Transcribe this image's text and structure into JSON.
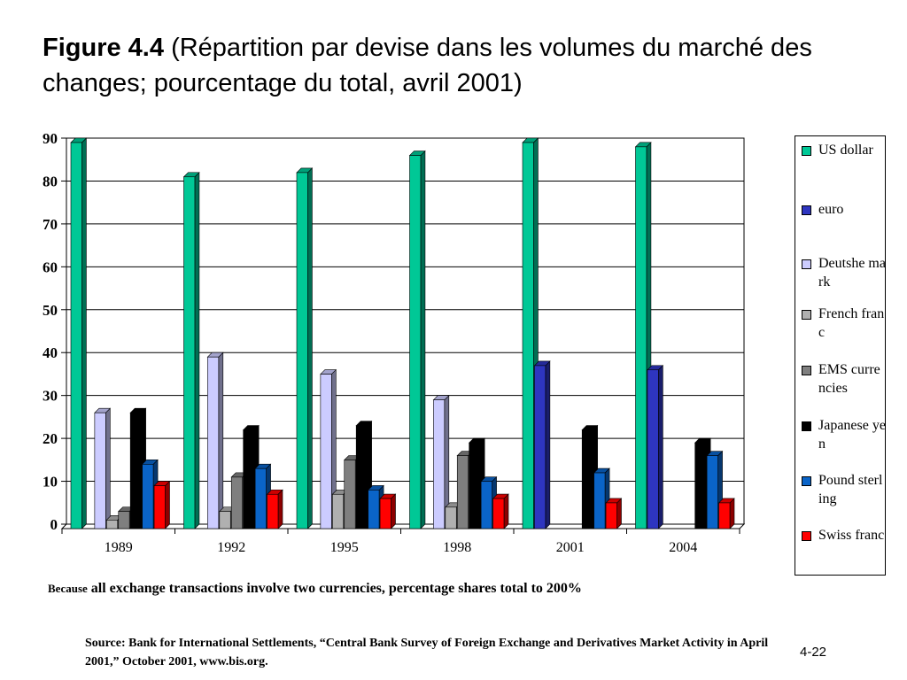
{
  "title": {
    "lead": "Figure 4.4",
    "rest": "(Répartition par devise dans les volumes du marché des changes; pourcentage du total, avril 2001)"
  },
  "chart_data": {
    "type": "bar",
    "categories": [
      "1989",
      "1992",
      "1995",
      "1998",
      "2001",
      "2004"
    ],
    "ylim": [
      0,
      90
    ],
    "yticks": [
      "0",
      "10",
      "20",
      "30",
      "40",
      "50",
      "60",
      "70",
      "80",
      "90"
    ],
    "grid": true,
    "legend_position": "right",
    "series": [
      {
        "name": "US dollar",
        "color": "#00C896",
        "values": [
          90,
          82,
          83,
          87,
          90,
          89
        ]
      },
      {
        "name": "euro",
        "color": "#2E35C0",
        "values": [
          0,
          0,
          0,
          0,
          38,
          37
        ]
      },
      {
        "name": "Deutshe mark",
        "color": "#CCCCFF",
        "values": [
          27,
          40,
          36,
          30,
          0,
          0
        ]
      },
      {
        "name": "French franc",
        "color": "#B0B0B0",
        "values": [
          2,
          4,
          8,
          5,
          0,
          0
        ]
      },
      {
        "name": "EMS currencies",
        "color": "#7F7F7F",
        "values": [
          4,
          12,
          16,
          17,
          0,
          0
        ]
      },
      {
        "name": "Japanese yen",
        "color": "#000000",
        "values": [
          27,
          23,
          24,
          20,
          23,
          20
        ]
      },
      {
        "name": "Pound sterling",
        "color": "#0A64C8",
        "values": [
          15,
          14,
          9,
          11,
          13,
          17
        ]
      },
      {
        "name": "Swiss franc",
        "color": "#FF0000",
        "values": [
          10,
          8,
          7,
          7,
          6,
          6
        ]
      }
    ]
  },
  "note": {
    "small": "Because",
    "rest": "all exchange transactions involve two currencies, percentage shares total to 200%"
  },
  "source": "Source: Bank for International Settlements, “Central Bank Survey of Foreign Exchange and Derivatives Market Activity in April 2001,” October 2001, www.bis.org.",
  "page_number": "4-22"
}
